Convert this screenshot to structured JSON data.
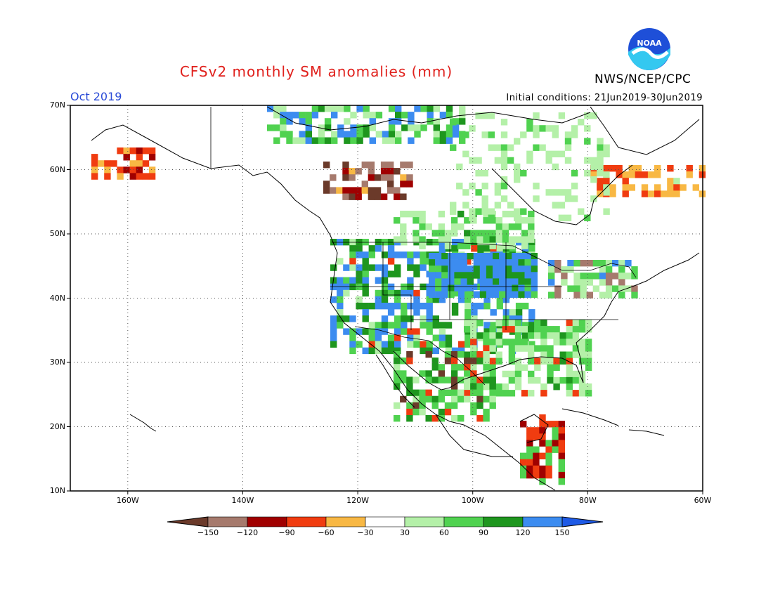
{
  "title": "CFSv2 monthly SM anomalies (mm)",
  "forecast_month": "Oct 2019",
  "agency": "NWS/NCEP/CPC",
  "logo_text": "NOAA",
  "initial_conditions": "Initial conditions: 21Jun2019-30Jun2019",
  "map": {
    "lon_range": [
      -170,
      -60
    ],
    "lat_range": [
      10,
      70
    ],
    "lat_labels": [
      "70N",
      "60N",
      "50N",
      "40N",
      "30N",
      "20N",
      "10N"
    ],
    "lon_labels": [
      "160W",
      "140W",
      "120W",
      "100W",
      "80W",
      "60W"
    ],
    "grid": "dotted"
  },
  "colorbar": {
    "colors": [
      "#6b3a2a",
      "#a67a6d",
      "#a00000",
      "#f03c10",
      "#f8b844",
      "#ffffff",
      "#b4f0a8",
      "#50d250",
      "#1e961e",
      "#3c8cf0",
      "#1e5ae6"
    ],
    "labels": [
      "-150",
      "-120",
      "-90",
      "-60",
      "-30",
      "30",
      "60",
      "90",
      "120",
      "150"
    ]
  },
  "colors": {
    "title": "#e0201c",
    "month": "#2a4bd7"
  }
}
